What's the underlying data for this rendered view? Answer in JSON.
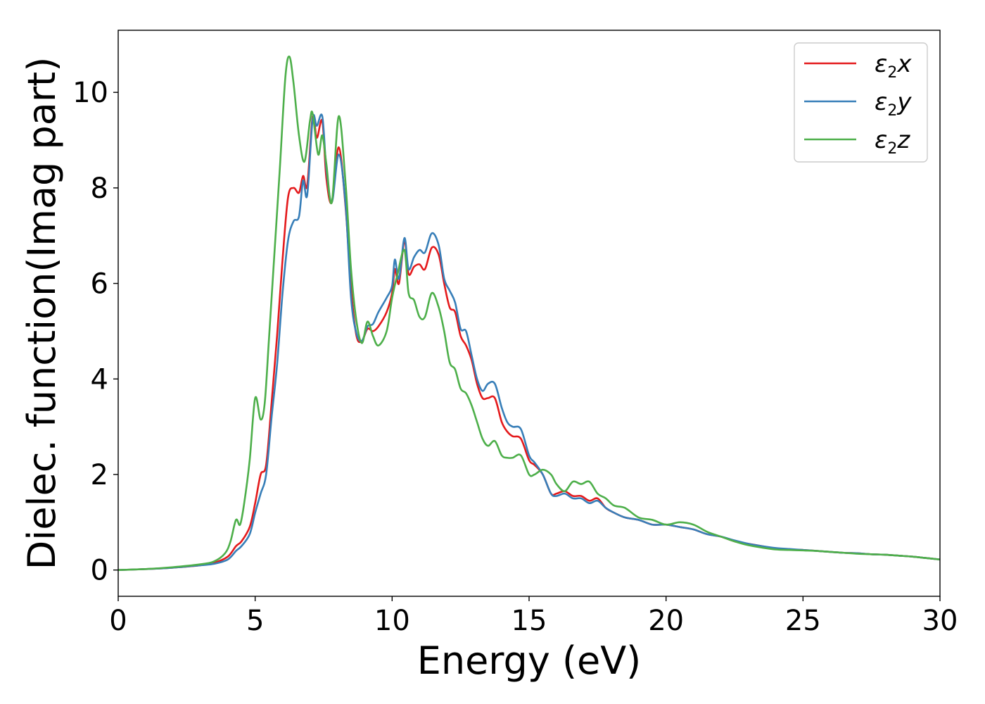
{
  "chart_data": {
    "type": "line",
    "title": "",
    "xlabel": "Energy (eV)",
    "ylabel": "Dielec. function(Imag part)",
    "xlim": [
      0,
      30
    ],
    "ylim": [
      -0.55,
      11.3
    ],
    "xticks": [
      0,
      5,
      10,
      15,
      20,
      25,
      30
    ],
    "yticks": [
      0,
      2,
      4,
      6,
      8,
      10
    ],
    "grid": false,
    "legend_position": "top-right",
    "series": [
      {
        "name": "ε₂x",
        "legend_base": "ε",
        "legend_sub": "2",
        "legend_var": "x",
        "color": "#e41a1c",
        "x": [
          0,
          1,
          2,
          3,
          3.5,
          4.0,
          4.3,
          4.5,
          4.8,
          5.0,
          5.2,
          5.4,
          5.6,
          5.8,
          6.0,
          6.2,
          6.4,
          6.6,
          6.75,
          6.9,
          7.1,
          7.25,
          7.45,
          7.6,
          7.8,
          8.05,
          8.3,
          8.5,
          8.7,
          8.9,
          9.1,
          9.3,
          9.5,
          9.8,
          10.0,
          10.1,
          10.25,
          10.45,
          10.6,
          10.8,
          11.0,
          11.2,
          11.45,
          11.7,
          11.9,
          12.1,
          12.3,
          12.5,
          12.7,
          12.9,
          13.1,
          13.3,
          13.5,
          13.75,
          14.0,
          14.2,
          14.4,
          14.7,
          15.0,
          15.2,
          15.5,
          15.8,
          16.0,
          16.3,
          16.6,
          16.9,
          17.2,
          17.5,
          17.8,
          18.1,
          18.5,
          19.0,
          19.5,
          20.0,
          20.5,
          21.0,
          21.5,
          22.0,
          22.5,
          23.0,
          23.5,
          24.0,
          24.5,
          25.0,
          25.5,
          26.0,
          26.5,
          27.0,
          27.5,
          28.0,
          28.5,
          29.0,
          29.5,
          30.0
        ],
        "y": [
          0.0,
          0.02,
          0.05,
          0.1,
          0.15,
          0.28,
          0.5,
          0.6,
          0.9,
          1.4,
          2.0,
          2.2,
          3.5,
          4.9,
          6.5,
          7.8,
          8.0,
          7.9,
          8.25,
          8.05,
          9.5,
          9.05,
          9.4,
          8.2,
          7.7,
          8.85,
          7.6,
          5.9,
          4.9,
          4.8,
          5.05,
          5.0,
          5.1,
          5.4,
          5.8,
          6.3,
          6.0,
          6.9,
          6.2,
          6.35,
          6.4,
          6.3,
          6.75,
          6.6,
          6.0,
          5.5,
          5.4,
          4.9,
          4.7,
          4.4,
          3.9,
          3.6,
          3.6,
          3.6,
          3.1,
          2.9,
          2.8,
          2.75,
          2.3,
          2.2,
          2.0,
          1.6,
          1.6,
          1.65,
          1.55,
          1.55,
          1.45,
          1.5,
          1.3,
          1.2,
          1.1,
          1.05,
          0.95,
          0.95,
          0.9,
          0.85,
          0.75,
          0.7,
          0.6,
          0.55,
          0.5,
          0.45,
          0.43,
          0.42,
          0.4,
          0.38,
          0.36,
          0.35,
          0.33,
          0.32,
          0.3,
          0.28,
          0.25,
          0.22
        ]
      },
      {
        "name": "ε₂y",
        "legend_base": "ε",
        "legend_sub": "2",
        "legend_var": "y",
        "color": "#377eb8",
        "x": [
          0,
          1,
          2,
          3,
          3.5,
          4.0,
          4.3,
          4.5,
          4.8,
          5.0,
          5.2,
          5.4,
          5.6,
          5.8,
          6.0,
          6.2,
          6.4,
          6.6,
          6.75,
          6.9,
          7.1,
          7.25,
          7.45,
          7.6,
          7.8,
          8.05,
          8.3,
          8.5,
          8.7,
          8.9,
          9.1,
          9.3,
          9.5,
          9.8,
          10.0,
          10.1,
          10.25,
          10.45,
          10.6,
          10.8,
          11.0,
          11.2,
          11.45,
          11.7,
          11.9,
          12.1,
          12.3,
          12.5,
          12.7,
          12.9,
          13.1,
          13.3,
          13.5,
          13.75,
          14.0,
          14.2,
          14.4,
          14.7,
          15.0,
          15.2,
          15.5,
          15.8,
          16.0,
          16.3,
          16.6,
          16.9,
          17.2,
          17.5,
          17.8,
          18.1,
          18.5,
          19.0,
          19.5,
          20.0,
          20.5,
          21.0,
          21.5,
          22.0,
          22.5,
          23.0,
          23.5,
          24.0,
          24.5,
          25.0,
          25.5,
          26.0,
          26.5,
          27.0,
          27.5,
          28.0,
          28.5,
          29.0,
          29.5,
          30.0
        ],
        "y": [
          0.0,
          0.02,
          0.05,
          0.1,
          0.13,
          0.22,
          0.4,
          0.5,
          0.75,
          1.2,
          1.6,
          2.0,
          3.2,
          4.3,
          5.8,
          6.9,
          7.3,
          7.4,
          8.15,
          7.85,
          9.45,
          9.3,
          9.5,
          8.4,
          7.7,
          8.7,
          7.65,
          5.7,
          4.95,
          4.8,
          5.1,
          5.15,
          5.4,
          5.7,
          5.95,
          6.5,
          6.1,
          6.95,
          6.3,
          6.55,
          6.7,
          6.65,
          7.05,
          6.8,
          6.1,
          5.85,
          5.6,
          5.05,
          5.0,
          4.5,
          4.0,
          3.75,
          3.9,
          3.9,
          3.4,
          3.1,
          3.0,
          2.95,
          2.4,
          2.25,
          2.0,
          1.6,
          1.55,
          1.6,
          1.5,
          1.5,
          1.4,
          1.45,
          1.3,
          1.2,
          1.1,
          1.05,
          0.95,
          0.95,
          0.9,
          0.85,
          0.75,
          0.7,
          0.62,
          0.55,
          0.5,
          0.46,
          0.44,
          0.42,
          0.4,
          0.38,
          0.36,
          0.35,
          0.33,
          0.32,
          0.3,
          0.28,
          0.25,
          0.22
        ]
      },
      {
        "name": "ε₂z",
        "legend_base": "ε",
        "legend_sub": "2",
        "legend_var": "z",
        "color": "#4daf4a",
        "x": [
          0,
          1,
          2,
          3,
          3.5,
          3.9,
          4.1,
          4.3,
          4.45,
          4.6,
          4.8,
          5.0,
          5.2,
          5.35,
          5.5,
          5.7,
          5.9,
          6.1,
          6.25,
          6.4,
          6.6,
          6.8,
          7.0,
          7.1,
          7.3,
          7.45,
          7.6,
          7.8,
          8.05,
          8.3,
          8.5,
          8.7,
          8.9,
          9.1,
          9.3,
          9.5,
          9.8,
          10.0,
          10.2,
          10.45,
          10.6,
          10.8,
          11.0,
          11.2,
          11.45,
          11.7,
          11.9,
          12.1,
          12.3,
          12.5,
          12.7,
          12.9,
          13.1,
          13.3,
          13.5,
          13.75,
          14.0,
          14.2,
          14.4,
          14.7,
          15.0,
          15.2,
          15.5,
          15.8,
          16.0,
          16.3,
          16.6,
          16.9,
          17.2,
          17.5,
          17.8,
          18.1,
          18.5,
          19.0,
          19.5,
          20.0,
          20.5,
          21.0,
          21.5,
          22.0,
          22.5,
          23.0,
          23.5,
          24.0,
          24.5,
          25.0,
          25.5,
          26.0,
          26.5,
          27.0,
          27.5,
          28.0,
          28.5,
          29.0,
          29.5,
          30.0
        ],
        "y": [
          0.0,
          0.02,
          0.06,
          0.12,
          0.18,
          0.35,
          0.6,
          1.05,
          0.95,
          1.4,
          2.3,
          3.6,
          3.15,
          3.5,
          4.8,
          6.6,
          8.4,
          10.3,
          10.75,
          10.2,
          9.1,
          8.55,
          9.4,
          9.55,
          8.7,
          9.1,
          8.5,
          7.7,
          9.5,
          8.1,
          6.3,
          5.2,
          4.75,
          5.2,
          4.9,
          4.7,
          5.0,
          5.7,
          6.2,
          6.7,
          5.8,
          5.65,
          5.3,
          5.3,
          5.8,
          5.5,
          5.0,
          4.35,
          4.2,
          3.8,
          3.7,
          3.45,
          3.1,
          2.75,
          2.6,
          2.7,
          2.4,
          2.35,
          2.35,
          2.4,
          2.0,
          2.0,
          2.1,
          2.0,
          1.8,
          1.65,
          1.85,
          1.8,
          1.85,
          1.6,
          1.5,
          1.35,
          1.3,
          1.1,
          1.05,
          0.95,
          1.0,
          0.95,
          0.8,
          0.7,
          0.6,
          0.52,
          0.47,
          0.43,
          0.42,
          0.41,
          0.4,
          0.38,
          0.36,
          0.34,
          0.33,
          0.32,
          0.3,
          0.28,
          0.25,
          0.22
        ]
      }
    ]
  }
}
